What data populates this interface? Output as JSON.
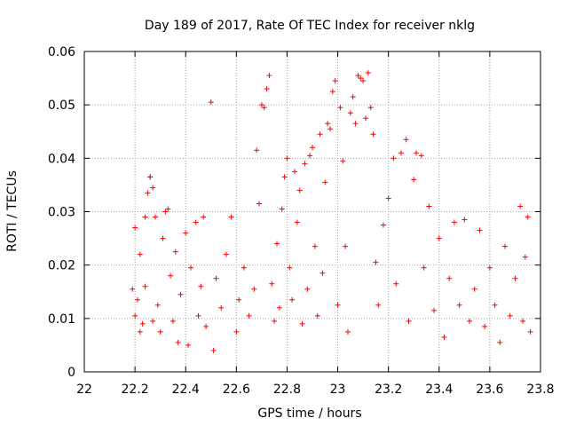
{
  "chart_data": {
    "type": "scatter",
    "title": "Day 189 of 2017, Rate Of TEC Index for receiver nklg",
    "xlabel": "GPS time / hours",
    "ylabel": "ROTI / TECUs",
    "xlim": [
      22,
      23.8
    ],
    "ylim": [
      0,
      0.06
    ],
    "grid": true,
    "marker": "+",
    "series_color": "#ff0000",
    "x_ticks": [
      "22",
      "22.2",
      "22.4",
      "22.6",
      "22.8",
      "23",
      "23.2",
      "23.4",
      "23.6",
      "23.8"
    ],
    "y_ticks": [
      "0",
      "0.01",
      "0.02",
      "0.03",
      "0.04",
      "0.05",
      "0.06"
    ],
    "x_range_of_points": [
      22.19,
      23.76
    ],
    "points": [
      [
        22.19,
        0.0155
      ],
      [
        22.2,
        0.027
      ],
      [
        22.2,
        0.0105
      ],
      [
        22.21,
        0.0135
      ],
      [
        22.22,
        0.0075
      ],
      [
        22.22,
        0.022
      ],
      [
        22.23,
        0.009
      ],
      [
        22.24,
        0.029
      ],
      [
        22.24,
        0.016
      ],
      [
        22.25,
        0.0335
      ],
      [
        22.26,
        0.0365
      ],
      [
        22.26,
        0.0365
      ],
      [
        22.27,
        0.0345
      ],
      [
        22.27,
        0.0095
      ],
      [
        22.28,
        0.029
      ],
      [
        22.29,
        0.0125
      ],
      [
        22.3,
        0.0075
      ],
      [
        22.31,
        0.025
      ],
      [
        22.32,
        0.03
      ],
      [
        22.33,
        0.0305
      ],
      [
        22.34,
        0.018
      ],
      [
        22.35,
        0.0095
      ],
      [
        22.36,
        0.0225
      ],
      [
        22.37,
        0.0055
      ],
      [
        22.38,
        0.0145
      ],
      [
        22.4,
        0.026
      ],
      [
        22.41,
        0.005
      ],
      [
        22.42,
        0.0195
      ],
      [
        22.44,
        0.028
      ],
      [
        22.45,
        0.0105
      ],
      [
        22.46,
        0.016
      ],
      [
        22.47,
        0.029
      ],
      [
        22.48,
        0.0085
      ],
      [
        22.5,
        0.0505
      ],
      [
        22.51,
        0.004
      ],
      [
        22.52,
        0.0175
      ],
      [
        22.54,
        0.012
      ],
      [
        22.56,
        0.022
      ],
      [
        22.58,
        0.029
      ],
      [
        22.6,
        0.0075
      ],
      [
        22.61,
        0.0135
      ],
      [
        22.63,
        0.0195
      ],
      [
        22.65,
        0.0105
      ],
      [
        22.67,
        0.0155
      ],
      [
        22.68,
        0.0415
      ],
      [
        22.69,
        0.0315
      ],
      [
        22.7,
        0.05
      ],
      [
        22.71,
        0.0495
      ],
      [
        22.72,
        0.053
      ],
      [
        22.73,
        0.0555
      ],
      [
        22.74,
        0.0165
      ],
      [
        22.75,
        0.0095
      ],
      [
        22.76,
        0.024
      ],
      [
        22.77,
        0.012
      ],
      [
        22.78,
        0.0305
      ],
      [
        22.79,
        0.0365
      ],
      [
        22.8,
        0.04
      ],
      [
        22.81,
        0.0195
      ],
      [
        22.82,
        0.0135
      ],
      [
        22.83,
        0.0375
      ],
      [
        22.84,
        0.028
      ],
      [
        22.85,
        0.034
      ],
      [
        22.86,
        0.009
      ],
      [
        22.87,
        0.039
      ],
      [
        22.88,
        0.0155
      ],
      [
        22.89,
        0.0405
      ],
      [
        22.9,
        0.042
      ],
      [
        22.91,
        0.0235
      ],
      [
        22.92,
        0.0105
      ],
      [
        22.93,
        0.0445
      ],
      [
        22.94,
        0.0185
      ],
      [
        22.95,
        0.0355
      ],
      [
        22.96,
        0.0465
      ],
      [
        22.97,
        0.0455
      ],
      [
        22.98,
        0.0525
      ],
      [
        22.99,
        0.0545
      ],
      [
        23.0,
        0.0125
      ],
      [
        23.01,
        0.0495
      ],
      [
        23.02,
        0.0395
      ],
      [
        23.03,
        0.0235
      ],
      [
        23.04,
        0.0075
      ],
      [
        23.05,
        0.0485
      ],
      [
        23.06,
        0.0515
      ],
      [
        23.07,
        0.0465
      ],
      [
        23.08,
        0.0555
      ],
      [
        23.09,
        0.055
      ],
      [
        23.1,
        0.0545
      ],
      [
        23.11,
        0.0475
      ],
      [
        23.12,
        0.056
      ],
      [
        23.13,
        0.0495
      ],
      [
        23.14,
        0.0445
      ],
      [
        23.15,
        0.0205
      ],
      [
        23.16,
        0.0125
      ],
      [
        23.18,
        0.0275
      ],
      [
        23.2,
        0.0325
      ],
      [
        23.22,
        0.04
      ],
      [
        23.23,
        0.0165
      ],
      [
        23.25,
        0.041
      ],
      [
        23.27,
        0.0435
      ],
      [
        23.28,
        0.0095
      ],
      [
        23.3,
        0.036
      ],
      [
        23.31,
        0.041
      ],
      [
        23.33,
        0.0405
      ],
      [
        23.34,
        0.0195
      ],
      [
        23.36,
        0.031
      ],
      [
        23.38,
        0.0115
      ],
      [
        23.4,
        0.025
      ],
      [
        23.42,
        0.0065
      ],
      [
        23.44,
        0.0175
      ],
      [
        23.46,
        0.028
      ],
      [
        23.48,
        0.0125
      ],
      [
        23.5,
        0.0285
      ],
      [
        23.52,
        0.0095
      ],
      [
        23.54,
        0.0155
      ],
      [
        23.56,
        0.0265
      ],
      [
        23.58,
        0.0085
      ],
      [
        23.6,
        0.0195
      ],
      [
        23.62,
        0.0125
      ],
      [
        23.64,
        0.0055
      ],
      [
        23.66,
        0.0235
      ],
      [
        23.68,
        0.0105
      ],
      [
        23.7,
        0.0175
      ],
      [
        23.72,
        0.031
      ],
      [
        23.73,
        0.0095
      ],
      [
        23.74,
        0.0215
      ],
      [
        23.75,
        0.029
      ],
      [
        23.76,
        0.0075
      ]
    ]
  }
}
